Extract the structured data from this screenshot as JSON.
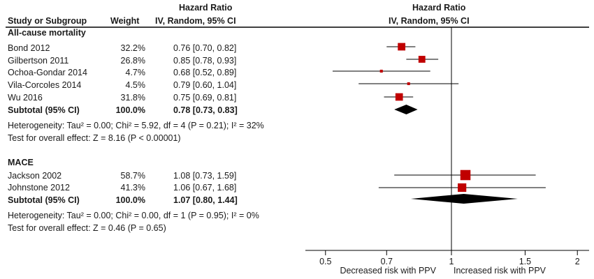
{
  "chart_data": {
    "type": "forest",
    "headers": {
      "study": "Study or Subgroup",
      "weight": "Weight",
      "hr_title": "Hazard Ratio",
      "hr_method": "IV, Random, 95% CI",
      "plot_title": "Hazard Ratio",
      "plot_method": "IV, Random, 95% CI"
    },
    "x_axis": {
      "scale": "log",
      "ticks": [
        0.5,
        0.7,
        1,
        1.5,
        2
      ],
      "tick_labels": [
        "0.5",
        "0.7",
        "1",
        "1.5",
        "2"
      ],
      "reference_line": 1,
      "left_label": "Decreased risk with PPV",
      "right_label": "Increased risk with PPV"
    },
    "groups": [
      {
        "name": "All-cause mortality",
        "studies": [
          {
            "name": "Bond 2012",
            "weight": "32.2%",
            "ci_text": "0.76 [0.70, 0.82]",
            "hr": 0.76,
            "lo": 0.7,
            "hi": 0.82,
            "w": 32.2
          },
          {
            "name": "Gilbertson 2011",
            "weight": "26.8%",
            "ci_text": "0.85 [0.78, 0.93]",
            "hr": 0.85,
            "lo": 0.78,
            "hi": 0.93,
            "w": 26.8
          },
          {
            "name": "Ochoa-Gondar 2014",
            "weight": "4.7%",
            "ci_text": "0.68 [0.52, 0.89]",
            "hr": 0.68,
            "lo": 0.52,
            "hi": 0.89,
            "w": 4.7
          },
          {
            "name": "Vila-Corcoles 2014",
            "weight": "4.5%",
            "ci_text": "0.79 [0.60, 1.04]",
            "hr": 0.79,
            "lo": 0.6,
            "hi": 1.04,
            "w": 4.5
          },
          {
            "name": "Wu 2016",
            "weight": "31.8%",
            "ci_text": "0.75 [0.69, 0.81]",
            "hr": 0.75,
            "lo": 0.69,
            "hi": 0.81,
            "w": 31.8
          }
        ],
        "subtotal": {
          "label": "Subtotal (95% CI)",
          "weight": "100.0%",
          "ci_text": "0.78 [0.73, 0.83]",
          "hr": 0.78,
          "lo": 0.73,
          "hi": 0.83
        },
        "heterogeneity": "Heterogeneity: Tau² = 0.00; Chi² = 5.92, df = 4 (P = 0.21); I² = 32%",
        "overall_effect": "Test for overall effect: Z = 8.16 (P < 0.00001)"
      },
      {
        "name": "MACE",
        "studies": [
          {
            "name": "Jackson 2002",
            "weight": "58.7%",
            "ci_text": "1.08 [0.73, 1.59]",
            "hr": 1.08,
            "lo": 0.73,
            "hi": 1.59,
            "w": 58.7
          },
          {
            "name": "Johnstone 2012",
            "weight": "41.3%",
            "ci_text": "1.06 [0.67, 1.68]",
            "hr": 1.06,
            "lo": 0.67,
            "hi": 1.68,
            "w": 41.3
          }
        ],
        "subtotal": {
          "label": "Subtotal (95% CI)",
          "weight": "100.0%",
          "ci_text": "1.07 [0.80, 1.44]",
          "hr": 1.07,
          "lo": 0.8,
          "hi": 1.44
        },
        "heterogeneity": "Heterogeneity: Tau² = 0.00; Chi² = 0.00, df = 1 (P = 0.95); I² = 0%",
        "overall_effect": "Test for overall effect: Z = 0.46 (P = 0.65)"
      }
    ],
    "colors": {
      "marker": "#c00000",
      "diamond": "#000000",
      "line": "#000000"
    }
  }
}
